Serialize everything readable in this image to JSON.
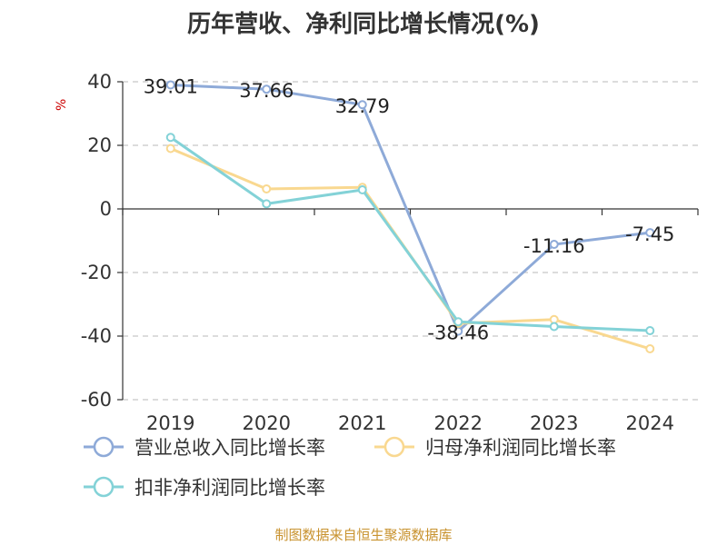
{
  "title": "历年营收、净利同比增长情况(%)",
  "y_unit": "%",
  "source": "制图数据来自恒生聚源数据库",
  "colors": {
    "revenue": "#8eaad8",
    "net_profit": "#f9d890",
    "deducted_net_profit": "#83d2d7",
    "grid": "#c8c8c8",
    "axis": "#333333",
    "source_text": "#c8922e",
    "unit_text": "#cc0000"
  },
  "chart_data": {
    "type": "line",
    "title": "历年营收、净利同比增长情况(%)",
    "ylabel": "%",
    "x": [
      "2019",
      "2020",
      "2021",
      "2022",
      "2023",
      "2024"
    ],
    "ylim": [
      -60,
      40
    ],
    "yticks": [
      40,
      20,
      0,
      -20,
      -40,
      -60
    ],
    "grid": true,
    "legend_position": "bottom",
    "series": [
      {
        "name": "营业总收入同比增长率",
        "color_key": "revenue",
        "values": [
          39.01,
          37.66,
          32.79,
          -38.46,
          -11.16,
          -7.45
        ],
        "labels": [
          "39.01",
          "37.66",
          "32.79",
          "-38.46",
          "-11.16",
          "-7.45"
        ]
      },
      {
        "name": "归母净利润同比增长率",
        "color_key": "net_profit",
        "values": [
          19.0,
          6.3,
          6.8,
          -36.0,
          -34.8,
          -44.0
        ]
      },
      {
        "name": "扣非净利润同比增长率",
        "color_key": "deducted_net_profit",
        "values": [
          22.5,
          1.6,
          6.0,
          -35.5,
          -37.0,
          -38.3
        ]
      }
    ]
  }
}
